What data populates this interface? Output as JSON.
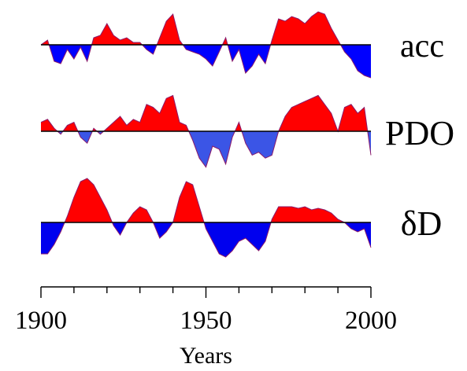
{
  "chart_data": {
    "type": "area",
    "xlabel": "Years",
    "xlim": [
      1900,
      2000
    ],
    "xticks": [
      1900,
      1910,
      1920,
      1930,
      1940,
      1950,
      1960,
      1970,
      1980,
      1990,
      2000
    ],
    "xtick_labels": [
      {
        "value": 1900,
        "label": "1900"
      },
      {
        "value": 1950,
        "label": "1950"
      },
      {
        "value": 2000,
        "label": "2000"
      }
    ],
    "colors": {
      "positive": "#ff0000",
      "negative_acc": "#0000ff",
      "negative_pdo": "#3b55e6",
      "negative_dd": "#0000ee",
      "baseline": "#000000"
    },
    "series": [
      {
        "name": "acc",
        "ylim": [
          -1.6,
          1.6
        ],
        "x": [
          1900,
          1902,
          1904,
          1906,
          1908,
          1910,
          1912,
          1914,
          1916,
          1918,
          1920,
          1922,
          1924,
          1926,
          1928,
          1930,
          1932,
          1934,
          1936,
          1938,
          1940,
          1942,
          1944,
          1946,
          1948,
          1950,
          1952,
          1954,
          1956,
          1958,
          1960,
          1962,
          1964,
          1966,
          1968,
          1970,
          1972,
          1974,
          1976,
          1978,
          1980,
          1982,
          1984,
          1986,
          1988,
          1990,
          1992,
          1994,
          1996,
          1998,
          2000
        ],
        "values": [
          0.0,
          0.2,
          -0.7,
          -0.8,
          -0.2,
          -0.6,
          -0.1,
          -0.7,
          0.3,
          0.4,
          0.9,
          0.4,
          0.2,
          0.3,
          0.1,
          0.1,
          -0.2,
          -0.4,
          0.3,
          1.0,
          1.3,
          0.2,
          -0.2,
          -0.3,
          -0.4,
          -0.6,
          -0.9,
          -0.3,
          0.3,
          -0.7,
          -0.2,
          -1.2,
          -0.9,
          -0.4,
          -0.8,
          0.2,
          1.1,
          1.0,
          1.2,
          1.1,
          0.9,
          1.2,
          1.4,
          1.3,
          0.7,
          0.2,
          -0.3,
          -0.6,
          -1.1,
          -1.3,
          -1.4
        ]
      },
      {
        "name": "PDO",
        "ylim": [
          -1.6,
          1.6
        ],
        "x": [
          1900,
          1902,
          1904,
          1906,
          1908,
          1910,
          1912,
          1914,
          1916,
          1918,
          1920,
          1922,
          1924,
          1926,
          1928,
          1930,
          1932,
          1934,
          1936,
          1938,
          1940,
          1942,
          1944,
          1946,
          1948,
          1950,
          1952,
          1954,
          1956,
          1958,
          1960,
          1962,
          1964,
          1966,
          1968,
          1970,
          1972,
          1974,
          1976,
          1978,
          1980,
          1982,
          1984,
          1986,
          1988,
          1990,
          1992,
          1994,
          1996,
          1998,
          2000
        ],
        "values": [
          0.3,
          0.4,
          0.1,
          -0.1,
          0.2,
          0.3,
          -0.2,
          -0.4,
          0.1,
          -0.1,
          0.1,
          0.3,
          0.5,
          0.2,
          0.4,
          0.3,
          0.9,
          0.8,
          0.6,
          1.1,
          1.2,
          0.3,
          0.2,
          -0.3,
          -0.9,
          -1.2,
          -0.5,
          -0.6,
          -1.1,
          -0.2,
          0.3,
          -0.4,
          -0.8,
          -0.7,
          -0.9,
          -0.8,
          0.0,
          0.5,
          0.8,
          0.9,
          1.0,
          1.1,
          1.2,
          0.9,
          0.6,
          0.0,
          0.8,
          0.9,
          0.6,
          0.8,
          -0.8
        ]
      },
      {
        "name": "δD",
        "ylim": [
          -1.6,
          1.6
        ],
        "x": [
          1900,
          1902,
          1904,
          1906,
          1908,
          1910,
          1912,
          1914,
          1916,
          1918,
          1920,
          1922,
          1924,
          1926,
          1928,
          1930,
          1932,
          1934,
          1936,
          1938,
          1940,
          1942,
          1944,
          1946,
          1948,
          1950,
          1952,
          1954,
          1956,
          1958,
          1960,
          1962,
          1964,
          1966,
          1968,
          1970,
          1972,
          1974,
          1976,
          1978,
          1980,
          1982,
          1984,
          1986,
          1988,
          1990,
          1992,
          1994,
          1996,
          1998,
          2000
        ],
        "values": [
          -1.0,
          -1.0,
          -0.7,
          -0.3,
          0.2,
          0.8,
          1.3,
          1.4,
          1.2,
          0.8,
          0.4,
          -0.1,
          -0.4,
          0.0,
          0.3,
          0.5,
          0.4,
          0.0,
          -0.5,
          -0.3,
          0.0,
          0.8,
          1.3,
          1.2,
          0.5,
          -0.2,
          -0.6,
          -1.0,
          -1.1,
          -0.9,
          -0.6,
          -0.5,
          -0.7,
          -0.9,
          -0.6,
          0.1,
          0.5,
          0.5,
          0.5,
          0.45,
          0.5,
          0.4,
          0.45,
          0.4,
          0.3,
          0.1,
          0.0,
          -0.2,
          -0.3,
          -0.2,
          -0.8
        ]
      }
    ]
  }
}
